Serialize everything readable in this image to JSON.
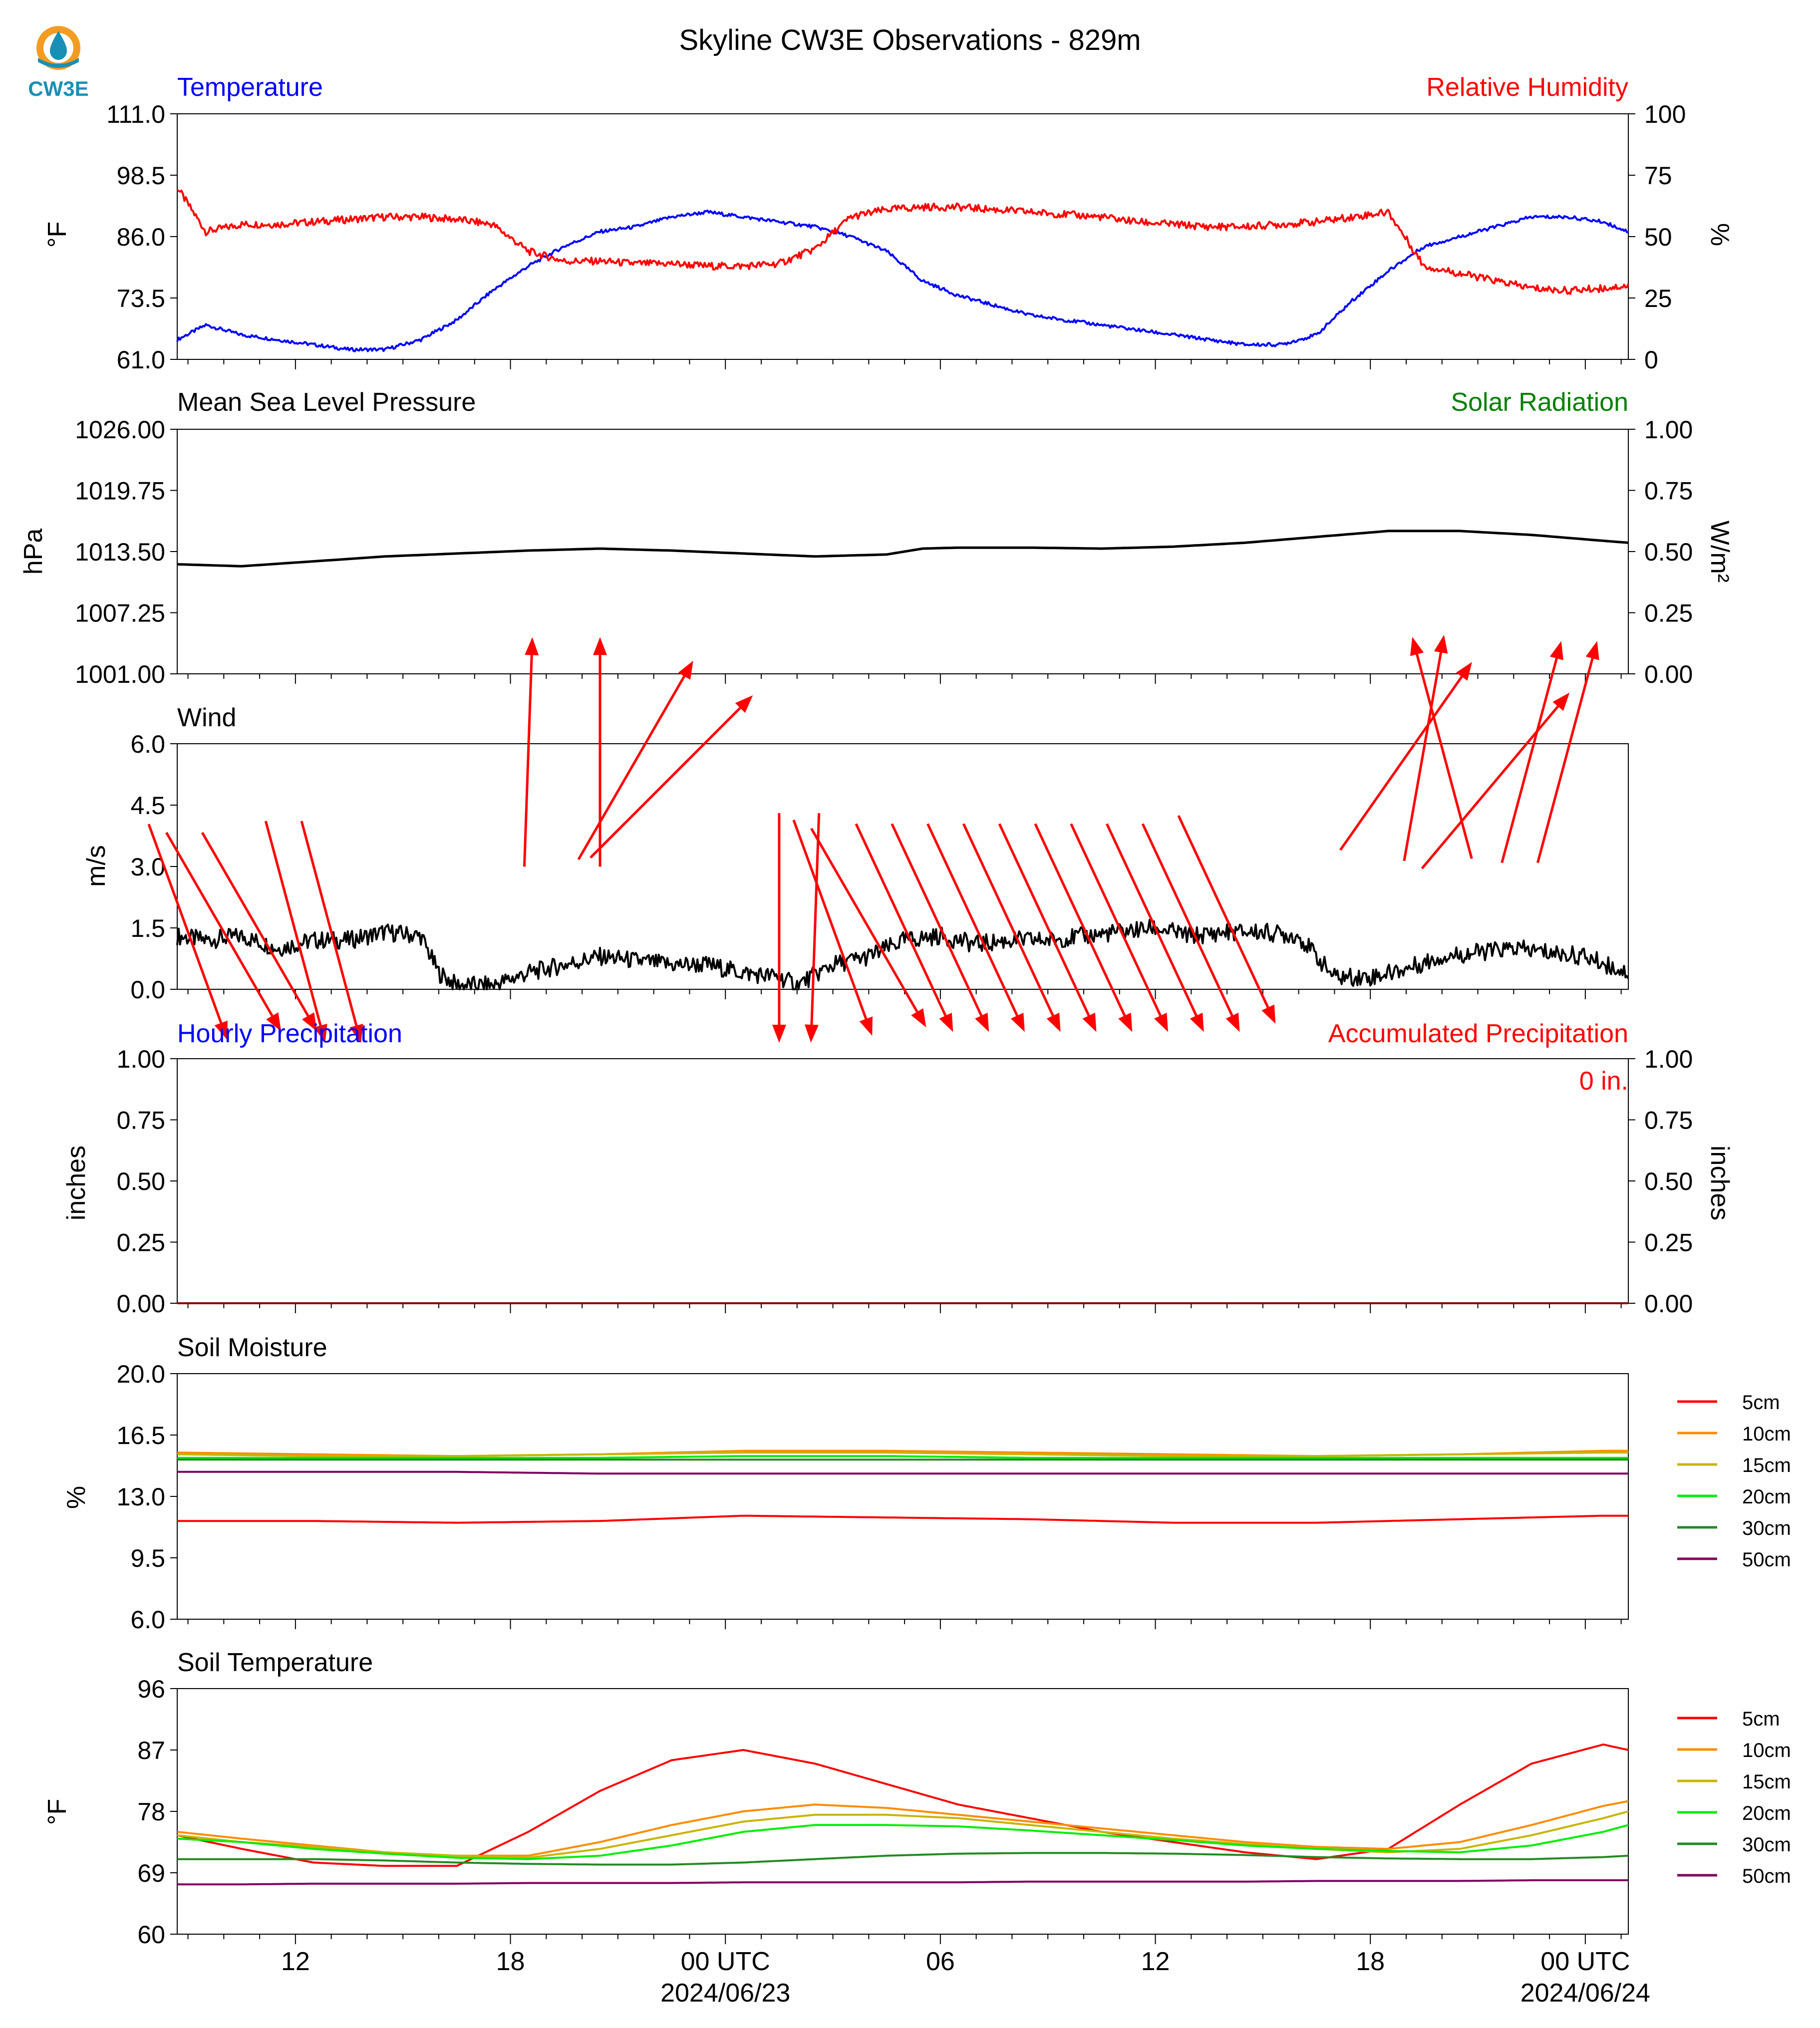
{
  "title": "Skyline CW3E Observations - 829m",
  "logo": {
    "text": "CW3E",
    "ring_color": "#f39c21",
    "drop_color": "#1a8fb5",
    "text_color": "#1a8fb5"
  },
  "colors": {
    "blue": "#0000ff",
    "red": "#ff0000",
    "green": "#008000",
    "black": "#000000"
  },
  "x_axis": {
    "labels": [
      {
        "h": 12,
        "line1": "12",
        "line2": ""
      },
      {
        "h": 18,
        "line1": "18",
        "line2": ""
      },
      {
        "h": 24,
        "line1": "00 UTC",
        "line2": "2024/06/23"
      },
      {
        "h": 30,
        "line1": "06",
        "line2": ""
      },
      {
        "h": 36,
        "line1": "12",
        "line2": ""
      },
      {
        "h": 42,
        "line1": "18",
        "line2": ""
      },
      {
        "h": 48,
        "line1": "00 UTC",
        "line2": "2024/06/24"
      }
    ],
    "range_hours": [
      8.7,
      49.2
    ]
  },
  "chart_data": [
    {
      "id": "temp_rh",
      "type": "line",
      "title_left": "Temperature",
      "title_right": "Relative Humidity",
      "ylabel_left": "°F",
      "ylabel_right": "%",
      "ylim": [
        61.0,
        111.0
      ],
      "yticks": [
        "111.0",
        "98.5",
        "86.0",
        "73.5",
        "61.0"
      ],
      "ylim_right": [
        0,
        100
      ],
      "yticks_right": [
        "100",
        "75",
        "50",
        "25",
        "0"
      ],
      "x_hours": [
        8.7,
        9.5,
        10.5,
        11.5,
        12.5,
        13.5,
        14.5,
        15.5,
        16.5,
        17.5,
        18.5,
        19.5,
        20.5,
        21.5,
        22.5,
        23.5,
        24.5,
        25.5,
        26.5,
        27.5,
        28.5,
        29.5,
        30.5,
        31.5,
        32.5,
        33.5,
        34.5,
        35.5,
        36.5,
        37.5,
        38.5,
        39.5,
        40.5,
        41.5,
        42.5,
        43.5,
        44.5,
        45.5,
        46.5,
        47.5,
        48.5,
        49.2
      ],
      "series": [
        {
          "name": "Temperature",
          "axis": "left",
          "color": "#0000ff",
          "values": [
            65,
            68,
            66,
            65,
            64,
            63,
            63,
            65,
            69,
            75,
            80,
            84,
            87,
            88,
            90,
            91,
            90,
            89,
            88,
            86,
            83,
            77,
            74,
            72,
            70,
            69,
            68,
            67,
            66,
            65,
            64,
            64,
            66,
            73,
            79,
            84,
            86,
            88,
            90,
            90,
            89,
            87
          ]
        },
        {
          "name": "Relative Humidity",
          "axis": "right",
          "color": "#ff0000",
          "values": [
            70,
            52,
            55,
            55,
            56,
            57,
            58,
            58,
            57,
            55,
            44,
            40,
            40,
            39,
            39,
            38,
            38,
            39,
            45,
            58,
            61,
            62,
            62,
            61,
            60,
            59,
            58,
            56,
            55,
            54,
            54,
            55,
            56,
            58,
            60,
            38,
            35,
            32,
            29,
            28,
            29,
            30
          ]
        }
      ]
    },
    {
      "id": "pressure",
      "type": "line",
      "title_left": "Mean Sea Level Pressure",
      "title_right": "Solar Radiation",
      "ylabel_left": "hPa",
      "ylabel_right": "W/m²",
      "ylim": [
        1001.0,
        1026.0
      ],
      "yticks": [
        "1026.00",
        "1019.75",
        "1013.50",
        "1007.25",
        "1001.00"
      ],
      "ylim_right": [
        0,
        1
      ],
      "yticks_right": [
        "1.00",
        "0.75",
        "0.50",
        "0.25",
        "0.00"
      ],
      "x_hours": [
        8.7,
        10.5,
        12.5,
        14.5,
        16.5,
        18.5,
        20.5,
        22.5,
        24.5,
        26.5,
        28.5,
        29.5,
        30.5,
        32.5,
        34.5,
        36.5,
        38.5,
        40.5,
        42.5,
        44.5,
        46.5,
        48.5,
        49.2
      ],
      "series": [
        {
          "name": "Mean Sea Level Pressure",
          "axis": "left",
          "color": "#000000",
          "values": [
            1012.2,
            1012.0,
            1012.5,
            1013.0,
            1013.3,
            1013.6,
            1013.8,
            1013.6,
            1013.3,
            1013.0,
            1013.2,
            1013.8,
            1013.9,
            1013.9,
            1013.8,
            1014.0,
            1014.4,
            1015.0,
            1015.6,
            1015.6,
            1015.2,
            1014.6,
            1014.4
          ]
        }
      ]
    },
    {
      "id": "wind",
      "type": "line",
      "title_left": "Wind",
      "ylabel_left": "m/s",
      "ylim": [
        0.0,
        6.0
      ],
      "yticks": [
        "6.0",
        "4.5",
        "3.0",
        "1.5",
        "0.0"
      ],
      "x_hours": [
        8.7,
        9.5,
        10.5,
        11.5,
        12.5,
        13.5,
        14.5,
        15.5,
        16.0,
        16.5,
        17.5,
        18.5,
        19.5,
        20.5,
        21.5,
        22.5,
        23.5,
        24.5,
        25.5,
        26.0,
        27.0,
        28.0,
        29.0,
        30.0,
        31.0,
        32.0,
        33.0,
        34.0,
        35.0,
        36.0,
        37.0,
        38.0,
        39.0,
        40.0,
        41.0,
        42.0,
        43.0,
        44.0,
        45.0,
        46.0,
        47.0,
        48.0,
        49.2
      ],
      "series": [
        {
          "name": "Wind Speed",
          "axis": "left",
          "color": "#000000",
          "values": [
            1.3,
            1.2,
            1.3,
            1.0,
            1.2,
            1.2,
            1.4,
            1.3,
            0.4,
            0.1,
            0.1,
            0.4,
            0.6,
            0.8,
            0.7,
            0.6,
            0.6,
            0.4,
            0.3,
            0.1,
            0.6,
            0.8,
            1.2,
            1.3,
            1.1,
            1.2,
            1.2,
            1.3,
            1.4,
            1.5,
            1.3,
            1.4,
            1.4,
            1.3,
            0.3,
            0.3,
            0.5,
            0.8,
            0.9,
            1.0,
            0.9,
            0.8,
            0.4
          ]
        }
      ],
      "barbs": [
        {
          "h": 9.0,
          "speed": 1.4,
          "dir_deg": 340
        },
        {
          "h": 10.0,
          "speed": 1.4,
          "dir_deg": 330
        },
        {
          "h": 11.0,
          "speed": 1.4,
          "dir_deg": 330
        },
        {
          "h": 12.0,
          "speed": 1.4,
          "dir_deg": 345
        },
        {
          "h": 13.0,
          "speed": 1.4,
          "dir_deg": 345
        },
        {
          "h": 18.5,
          "speed": 5.8,
          "dir_deg": 182
        },
        {
          "h": 20.5,
          "speed": 5.8,
          "dir_deg": 180
        },
        {
          "h": 21.5,
          "speed": 5.6,
          "dir_deg": 210
        },
        {
          "h": 22.5,
          "speed": 5.2,
          "dir_deg": 225
        },
        {
          "h": 25.5,
          "speed": 1.5,
          "dir_deg": 0
        },
        {
          "h": 26.5,
          "speed": 1.5,
          "dir_deg": 2
        },
        {
          "h": 27.0,
          "speed": 1.5,
          "dir_deg": 340
        },
        {
          "h": 28.0,
          "speed": 1.5,
          "dir_deg": 330
        },
        {
          "h": 29.0,
          "speed": 1.5,
          "dir_deg": 335
        },
        {
          "h": 30.0,
          "speed": 1.5,
          "dir_deg": 335
        },
        {
          "h": 31.0,
          "speed": 1.5,
          "dir_deg": 335
        },
        {
          "h": 32.0,
          "speed": 1.5,
          "dir_deg": 335
        },
        {
          "h": 33.0,
          "speed": 1.5,
          "dir_deg": 335
        },
        {
          "h": 34.0,
          "speed": 1.5,
          "dir_deg": 335
        },
        {
          "h": 35.0,
          "speed": 1.5,
          "dir_deg": 335
        },
        {
          "h": 36.0,
          "speed": 1.5,
          "dir_deg": 335
        },
        {
          "h": 37.0,
          "speed": 1.5,
          "dir_deg": 335
        },
        {
          "h": 38.0,
          "speed": 1.7,
          "dir_deg": 335
        },
        {
          "h": 43.0,
          "speed": 5.7,
          "dir_deg": 215
        },
        {
          "h": 43.5,
          "speed": 5.9,
          "dir_deg": 190
        },
        {
          "h": 44.0,
          "speed": 5.9,
          "dir_deg": 165
        },
        {
          "h": 45.5,
          "speed": 5.1,
          "dir_deg": 220
        },
        {
          "h": 46.5,
          "speed": 5.8,
          "dir_deg": 195
        },
        {
          "h": 47.5,
          "speed": 5.8,
          "dir_deg": 195
        }
      ]
    },
    {
      "id": "precip",
      "type": "line",
      "title_left": "Hourly Precipitation",
      "title_right": "Accumulated Precipitation",
      "ylabel_left": "inches",
      "ylabel_right": "inches",
      "ylim": [
        0.0,
        1.0
      ],
      "yticks": [
        "1.00",
        "0.75",
        "0.50",
        "0.25",
        "0.00"
      ],
      "ylim_right": [
        0.0,
        1.0
      ],
      "yticks_right": [
        "1.00",
        "0.75",
        "0.50",
        "0.25",
        "0.00"
      ],
      "annotation": "0 in.",
      "x_hours": [
        8.7,
        49.2
      ],
      "series": [
        {
          "name": "Accumulated Precipitation",
          "axis": "right",
          "color": "#8b0000",
          "values": [
            0.0,
            0.0
          ]
        }
      ]
    },
    {
      "id": "soil_moisture",
      "type": "line",
      "title_left": "Soil Moisture",
      "ylabel_left": "%",
      "ylim": [
        6.0,
        20.0
      ],
      "yticks": [
        "20.0",
        "16.5",
        "13.0",
        "9.5",
        "6.0"
      ],
      "x_hours": [
        8.7,
        12.5,
        16.5,
        20.5,
        24.5,
        28.5,
        32.5,
        36.5,
        40.5,
        44.5,
        48.5,
        49.2
      ],
      "series": [
        {
          "name": "5cm",
          "color": "#ff0000",
          "values": [
            11.6,
            11.6,
            11.5,
            11.6,
            11.9,
            11.8,
            11.7,
            11.5,
            11.5,
            11.7,
            11.9,
            11.9
          ]
        },
        {
          "name": "10cm",
          "color": "#ff8c00",
          "values": [
            15.5,
            15.4,
            15.3,
            15.4,
            15.6,
            15.6,
            15.5,
            15.4,
            15.3,
            15.4,
            15.6,
            15.6
          ]
        },
        {
          "name": "15cm",
          "color": "#c8b400",
          "values": [
            15.4,
            15.3,
            15.3,
            15.4,
            15.5,
            15.5,
            15.4,
            15.3,
            15.3,
            15.4,
            15.5,
            15.5
          ]
        },
        {
          "name": "20cm",
          "color": "#00ee00",
          "values": [
            15.2,
            15.2,
            15.2,
            15.2,
            15.3,
            15.3,
            15.2,
            15.2,
            15.2,
            15.2,
            15.2,
            15.2
          ]
        },
        {
          "name": "30cm",
          "color": "#228b22",
          "values": [
            15.1,
            15.1,
            15.1,
            15.1,
            15.1,
            15.1,
            15.1,
            15.1,
            15.1,
            15.1,
            15.1,
            15.1
          ]
        },
        {
          "name": "50cm",
          "color": "#800060",
          "values": [
            14.4,
            14.4,
            14.4,
            14.3,
            14.3,
            14.3,
            14.3,
            14.3,
            14.3,
            14.3,
            14.3,
            14.3
          ]
        }
      ]
    },
    {
      "id": "soil_temp",
      "type": "line",
      "title_left": "Soil Temperature",
      "ylabel_left": "°F",
      "ylim": [
        60,
        96
      ],
      "yticks": [
        "96",
        "87",
        "78",
        "69",
        "60"
      ],
      "x_hours": [
        8.7,
        10.5,
        12.5,
        14.5,
        16.5,
        18.5,
        20.5,
        22.5,
        24.5,
        26.5,
        28.5,
        30.5,
        32.5,
        34.5,
        36.5,
        38.5,
        40.5,
        42.5,
        44.5,
        46.5,
        48.5,
        49.2
      ],
      "series": [
        {
          "name": "5cm",
          "color": "#ff0000",
          "values": [
            74.5,
            72.5,
            70.5,
            70.0,
            70.0,
            75.0,
            81.0,
            85.5,
            87.0,
            85.0,
            82.0,
            79.0,
            77.0,
            75.0,
            73.5,
            72.0,
            71.0,
            72.5,
            79.0,
            85.0,
            87.8,
            87.0
          ]
        },
        {
          "name": "10cm",
          "color": "#ff8c00",
          "values": [
            75.0,
            74.0,
            73.0,
            72.0,
            71.5,
            71.5,
            73.5,
            76.0,
            78.0,
            79.0,
            78.5,
            77.5,
            76.5,
            75.5,
            74.5,
            73.5,
            72.8,
            72.5,
            73.5,
            76.0,
            78.8,
            79.5
          ]
        },
        {
          "name": "15cm",
          "color": "#c8b400",
          "values": [
            74.5,
            73.5,
            72.8,
            72.0,
            71.5,
            71.2,
            72.5,
            74.5,
            76.5,
            77.5,
            77.5,
            77.0,
            76.0,
            75.0,
            74.0,
            73.2,
            72.5,
            72.0,
            72.5,
            74.5,
            77.0,
            78.0
          ]
        },
        {
          "name": "20cm",
          "color": "#00ee00",
          "values": [
            74.0,
            73.5,
            72.5,
            71.8,
            71.2,
            71.0,
            71.5,
            73.0,
            75.0,
            76.0,
            76.0,
            75.8,
            75.2,
            74.5,
            73.8,
            73.0,
            72.5,
            72.2,
            72.0,
            73.0,
            75.0,
            76.0
          ]
        },
        {
          "name": "30cm",
          "color": "#228b22",
          "values": [
            71.0,
            71.0,
            71.0,
            70.8,
            70.5,
            70.3,
            70.2,
            70.2,
            70.5,
            71.0,
            71.5,
            71.8,
            71.9,
            71.9,
            71.8,
            71.6,
            71.3,
            71.1,
            71.0,
            71.0,
            71.3,
            71.5
          ]
        },
        {
          "name": "50cm",
          "color": "#800060",
          "values": [
            67.3,
            67.3,
            67.4,
            67.4,
            67.4,
            67.5,
            67.5,
            67.5,
            67.6,
            67.6,
            67.6,
            67.6,
            67.7,
            67.7,
            67.7,
            67.7,
            67.8,
            67.8,
            67.8,
            67.9,
            67.9,
            67.9
          ]
        }
      ]
    }
  ]
}
